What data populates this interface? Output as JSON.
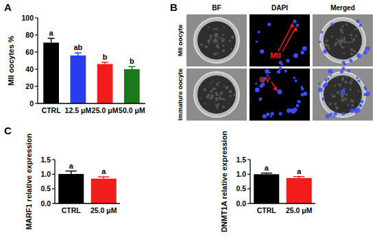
{
  "panel_labels": [
    "A",
    "B",
    "C"
  ],
  "chart_data": [
    {
      "type": "bar",
      "y_label": "MII oocytes %",
      "categories": [
        "CTRL",
        "12.5 μM",
        "25.0 μM",
        "50.0 μM"
      ],
      "values": [
        71,
        56,
        46,
        40
      ],
      "errors": [
        5,
        3,
        2,
        3
      ],
      "colors": [
        "#000000",
        "#2a3cf0",
        "#f21c1c",
        "#1a7a1a"
      ],
      "annotations": [
        "a",
        "ab",
        "b",
        "b"
      ],
      "ylim": [
        0,
        100
      ],
      "yticks": [
        0,
        20,
        40,
        60,
        80,
        100
      ]
    },
    {
      "type": "bar",
      "y_label": "MARF1 relative expression",
      "categories": [
        "CTRL",
        "25.0 μM"
      ],
      "values": [
        1.01,
        0.85
      ],
      "errors": [
        0.1,
        0.06
      ],
      "colors": [
        "#000000",
        "#f21c1c"
      ],
      "annotations": [
        "a",
        "a"
      ],
      "ylim": [
        0,
        1.5
      ],
      "yticks": [
        {
          "value": 0,
          "label": "0.0"
        },
        0.5,
        {
          "value": 1,
          "label": "1.0"
        },
        1.5
      ]
    },
    {
      "type": "bar",
      "y_label": "DNMT1A relative expression",
      "categories": [
        "CTRL",
        "25.0 μM"
      ],
      "values": [
        1.0,
        0.87
      ],
      "errors": [
        0.04,
        0.05
      ],
      "colors": [
        "#000000",
        "#f21c1c"
      ],
      "annotations": [
        "a",
        "a"
      ],
      "ylim": [
        0,
        1.5
      ],
      "yticks": [
        {
          "value": 0,
          "label": "0.0"
        },
        0.5,
        {
          "value": 1,
          "label": "1.0"
        },
        1.5
      ]
    }
  ],
  "image_panel": {
    "columns": [
      "BF",
      "DAPI",
      "Merged"
    ],
    "rows": [
      "MII oocyte",
      "Immature oocyte"
    ],
    "annotations": [
      "MII",
      "GV"
    ]
  }
}
